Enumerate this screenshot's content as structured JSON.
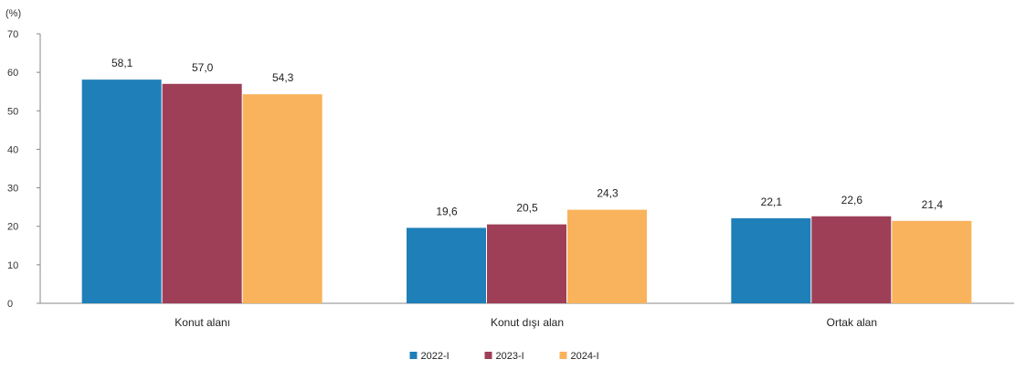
{
  "chart_data": {
    "type": "bar",
    "unit_label": "(%)",
    "categories": [
      "Konut alanı",
      "Konut dışı alan",
      "Ortak alan"
    ],
    "series": [
      {
        "name": "2022-I",
        "values": [
          58.1,
          19.6,
          22.1
        ],
        "labels": [
          "58,1",
          "19,6",
          "22,1"
        ],
        "color": "#1f7fb8"
      },
      {
        "name": "2023-I",
        "values": [
          57.0,
          20.5,
          22.6
        ],
        "labels": [
          "57,0",
          "20,5",
          "22,6"
        ],
        "color": "#9e3f57"
      },
      {
        "name": "2024-I",
        "values": [
          54.3,
          24.3,
          21.4
        ],
        "labels": [
          "54,3",
          "24,3",
          "21,4"
        ],
        "color": "#f9b35c"
      }
    ],
    "ylim": [
      0,
      70
    ],
    "yticks": [
      0,
      10,
      20,
      30,
      40,
      50,
      60,
      70
    ],
    "grid": false,
    "legend_position": "bottom-center"
  }
}
